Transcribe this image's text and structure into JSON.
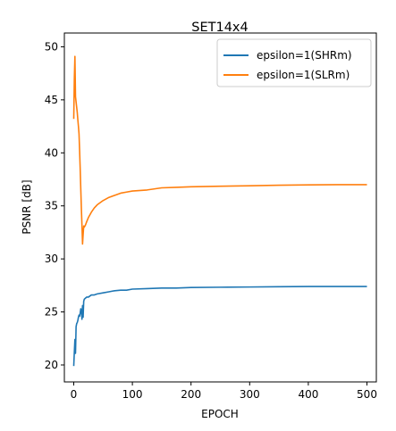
{
  "chart_data": {
    "type": "line",
    "title": "SET14x4",
    "xlabel": "EPOCH",
    "ylabel": "PSNR [dB]",
    "xlim": [
      -16,
      516
    ],
    "ylim": [
      18.4,
      51.3
    ],
    "xticks": [
      0,
      100,
      200,
      300,
      400,
      500
    ],
    "yticks": [
      20,
      25,
      30,
      35,
      40,
      45,
      50
    ],
    "grid": false,
    "legend_position": "top-right",
    "series": [
      {
        "name": "epsilon=1(SHRm)",
        "color": "#1f77b4",
        "x": [
          0,
          1,
          2,
          3,
          4,
          5,
          6,
          7,
          8,
          9,
          10,
          11,
          12,
          13,
          14,
          15,
          16,
          17,
          18,
          20,
          22,
          25,
          30,
          35,
          40,
          50,
          60,
          70,
          80,
          90,
          100,
          125,
          150,
          175,
          200,
          250,
          300,
          350,
          400,
          450,
          500
        ],
        "y": [
          19.9,
          21.2,
          22.4,
          21.1,
          23.6,
          23.9,
          24.0,
          24.2,
          24.5,
          24.7,
          24.6,
          24.9,
          25.3,
          25.1,
          24.3,
          25.6,
          24.5,
          26.0,
          26.2,
          26.3,
          26.4,
          26.4,
          26.6,
          26.6,
          26.7,
          26.8,
          26.9,
          27.0,
          27.05,
          27.05,
          27.15,
          27.2,
          27.25,
          27.25,
          27.3,
          27.33,
          27.35,
          27.38,
          27.4,
          27.4,
          27.4
        ]
      },
      {
        "name": "epsilon=1(SLRm)",
        "color": "#ff7f0e",
        "x": [
          0,
          1,
          2,
          3,
          4,
          5,
          6,
          7,
          8,
          9,
          10,
          11,
          12,
          13,
          14,
          15,
          16,
          17,
          18,
          20,
          22,
          25,
          28,
          30,
          35,
          40,
          45,
          50,
          60,
          70,
          80,
          90,
          100,
          125,
          150,
          175,
          200,
          250,
          300,
          350,
          400,
          450,
          500
        ],
        "y": [
          43.2,
          47.0,
          49.1,
          45.3,
          44.8,
          44.3,
          43.8,
          43.1,
          42.5,
          41.8,
          40.2,
          38.5,
          36.6,
          34.8,
          33.2,
          31.4,
          32.3,
          33.1,
          33.0,
          33.2,
          33.5,
          33.9,
          34.2,
          34.4,
          34.8,
          35.1,
          35.3,
          35.5,
          35.8,
          36.0,
          36.2,
          36.3,
          36.4,
          36.5,
          36.7,
          36.75,
          36.8,
          36.85,
          36.9,
          36.95,
          36.98,
          37.0,
          37.0
        ]
      }
    ]
  }
}
